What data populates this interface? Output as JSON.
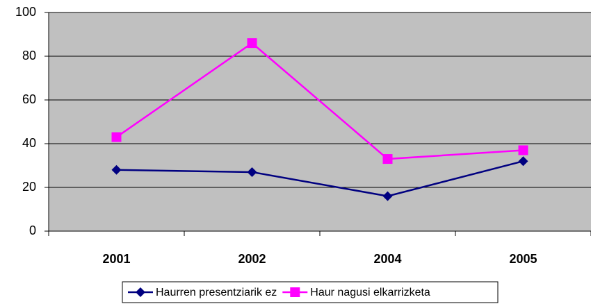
{
  "chart_data": {
    "type": "line",
    "categories": [
      "2001",
      "2002",
      "2004",
      "2005"
    ],
    "series": [
      {
        "name": "Haurren presentziarik ez",
        "color": "#000080",
        "marker": "diamond",
        "values": [
          28,
          27,
          16,
          32
        ]
      },
      {
        "name": "Haur nagusi elkarrizketa",
        "color": "#ff00ff",
        "marker": "square",
        "values": [
          43,
          86,
          33,
          37
        ]
      }
    ],
    "ylim": [
      0,
      100
    ],
    "yticks": [
      0,
      20,
      40,
      60,
      80,
      100
    ],
    "grid": true,
    "plot_background": "#c0c0c0",
    "legend": "bottom"
  }
}
